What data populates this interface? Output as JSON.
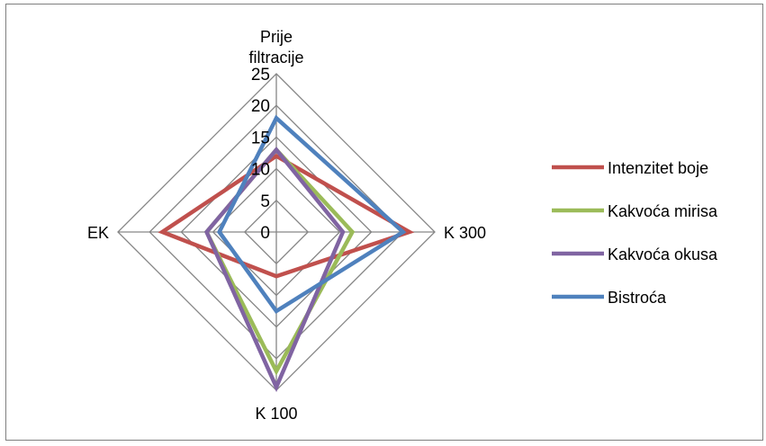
{
  "chart_data": {
    "type": "radar",
    "categories": [
      "Prije filtracije",
      "K 300",
      "K 100",
      "EK"
    ],
    "category_label_lines": [
      [
        "Prije",
        "filtracije"
      ],
      [
        "K 300"
      ],
      [
        "K 100"
      ],
      [
        "EK"
      ]
    ],
    "rlim": [
      0,
      25
    ],
    "ticks": [
      0,
      5,
      10,
      15,
      20,
      25
    ],
    "tick_labels": [
      "0",
      "5",
      "10",
      "15",
      "20",
      "25"
    ],
    "series": [
      {
        "name": "Intenzitet boje",
        "color": "#c0504d",
        "values": [
          12,
          21,
          7,
          18
        ]
      },
      {
        "name": "Kakvoća mirisa",
        "color": "#9bbb59",
        "values": [
          13,
          12,
          22,
          11
        ]
      },
      {
        "name": "Kakvoća okusa",
        "color": "#8064a2",
        "values": [
          13,
          10.5,
          24.5,
          11
        ]
      },
      {
        "name": "Bistroća",
        "color": "#4f81bd",
        "values": [
          18,
          20,
          12.5,
          9
        ]
      }
    ],
    "grid": true,
    "legend": "right"
  }
}
